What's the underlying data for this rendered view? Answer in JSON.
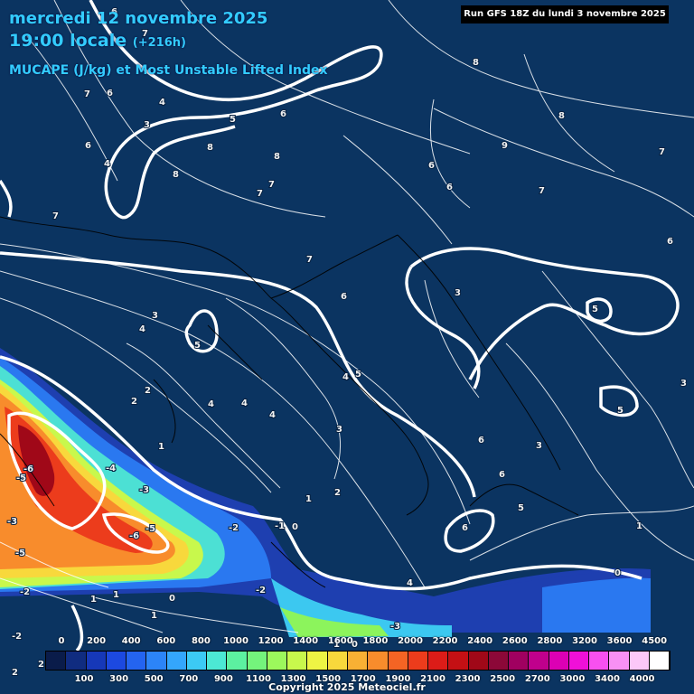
{
  "header": {
    "date": "mercredi 12 novembre 2025",
    "time": "19:00 locale",
    "lead": "(+216h)",
    "parameter": "MUCAPE (J/kg) et Most Unstable Lifted Index"
  },
  "run_info": "Run GFS 18Z du lundi 3 novembre 2025",
  "copyright": "Copyright 2025 Meteociel.fr",
  "colorbar": {
    "colors": [
      "#0a1c4a",
      "#102c80",
      "#1638b8",
      "#1c49e0",
      "#2464f0",
      "#2c84f8",
      "#34a6fc",
      "#3ccaf4",
      "#4ce8d4",
      "#5cf0a0",
      "#74f47c",
      "#9cf85c",
      "#c8f84c",
      "#eef444",
      "#f8d83c",
      "#f8b034",
      "#f88c2c",
      "#f46424",
      "#ec3c1c",
      "#dc1c18",
      "#c41014",
      "#a00818",
      "#8c0838",
      "#a00060",
      "#c0008c",
      "#dc00b4",
      "#f010d8",
      "#f850f0",
      "#f890f4",
      "#fcc8f8",
      "#ffffff"
    ],
    "ticks_top": [
      "0",
      "200",
      "400",
      "600",
      "800",
      "1000",
      "1200",
      "1400",
      "1600",
      "1800",
      "2000",
      "2200",
      "2400",
      "2600",
      "2800",
      "3200",
      "3600",
      "4500"
    ],
    "ticks_bottom": [
      "100",
      "300",
      "500",
      "700",
      "900",
      "1100",
      "1300",
      "1500",
      "1700",
      "1900",
      "2100",
      "2300",
      "2500",
      "2700",
      "3000",
      "3400",
      "4000"
    ]
  },
  "labels": [
    "6",
    "7",
    "6",
    "7",
    "4",
    "3",
    "5",
    "6",
    "4",
    "6",
    "8",
    "8",
    "7",
    "7",
    "8",
    "8",
    "9",
    "7",
    "8",
    "7",
    "6",
    "6",
    "6",
    "7",
    "7",
    "6",
    "3",
    "5",
    "3",
    "4",
    "5",
    "2",
    "4",
    "4",
    "4",
    "5",
    "4",
    "3",
    "1",
    "2",
    "1",
    "2",
    "6",
    "6",
    "5",
    "3",
    "5",
    "6",
    "1",
    "0",
    "-6",
    "-4",
    "-3",
    "-5",
    "-5",
    "-6",
    "-3",
    "-2",
    "-1",
    "0",
    "-5",
    "-2",
    "-2",
    "1",
    "1",
    "0",
    "1",
    "-3",
    "-2",
    "1",
    "0",
    "2",
    "2",
    "3",
    "4"
  ],
  "legend_note": "Lifted Index isolines (white) over MUCAPE shading"
}
